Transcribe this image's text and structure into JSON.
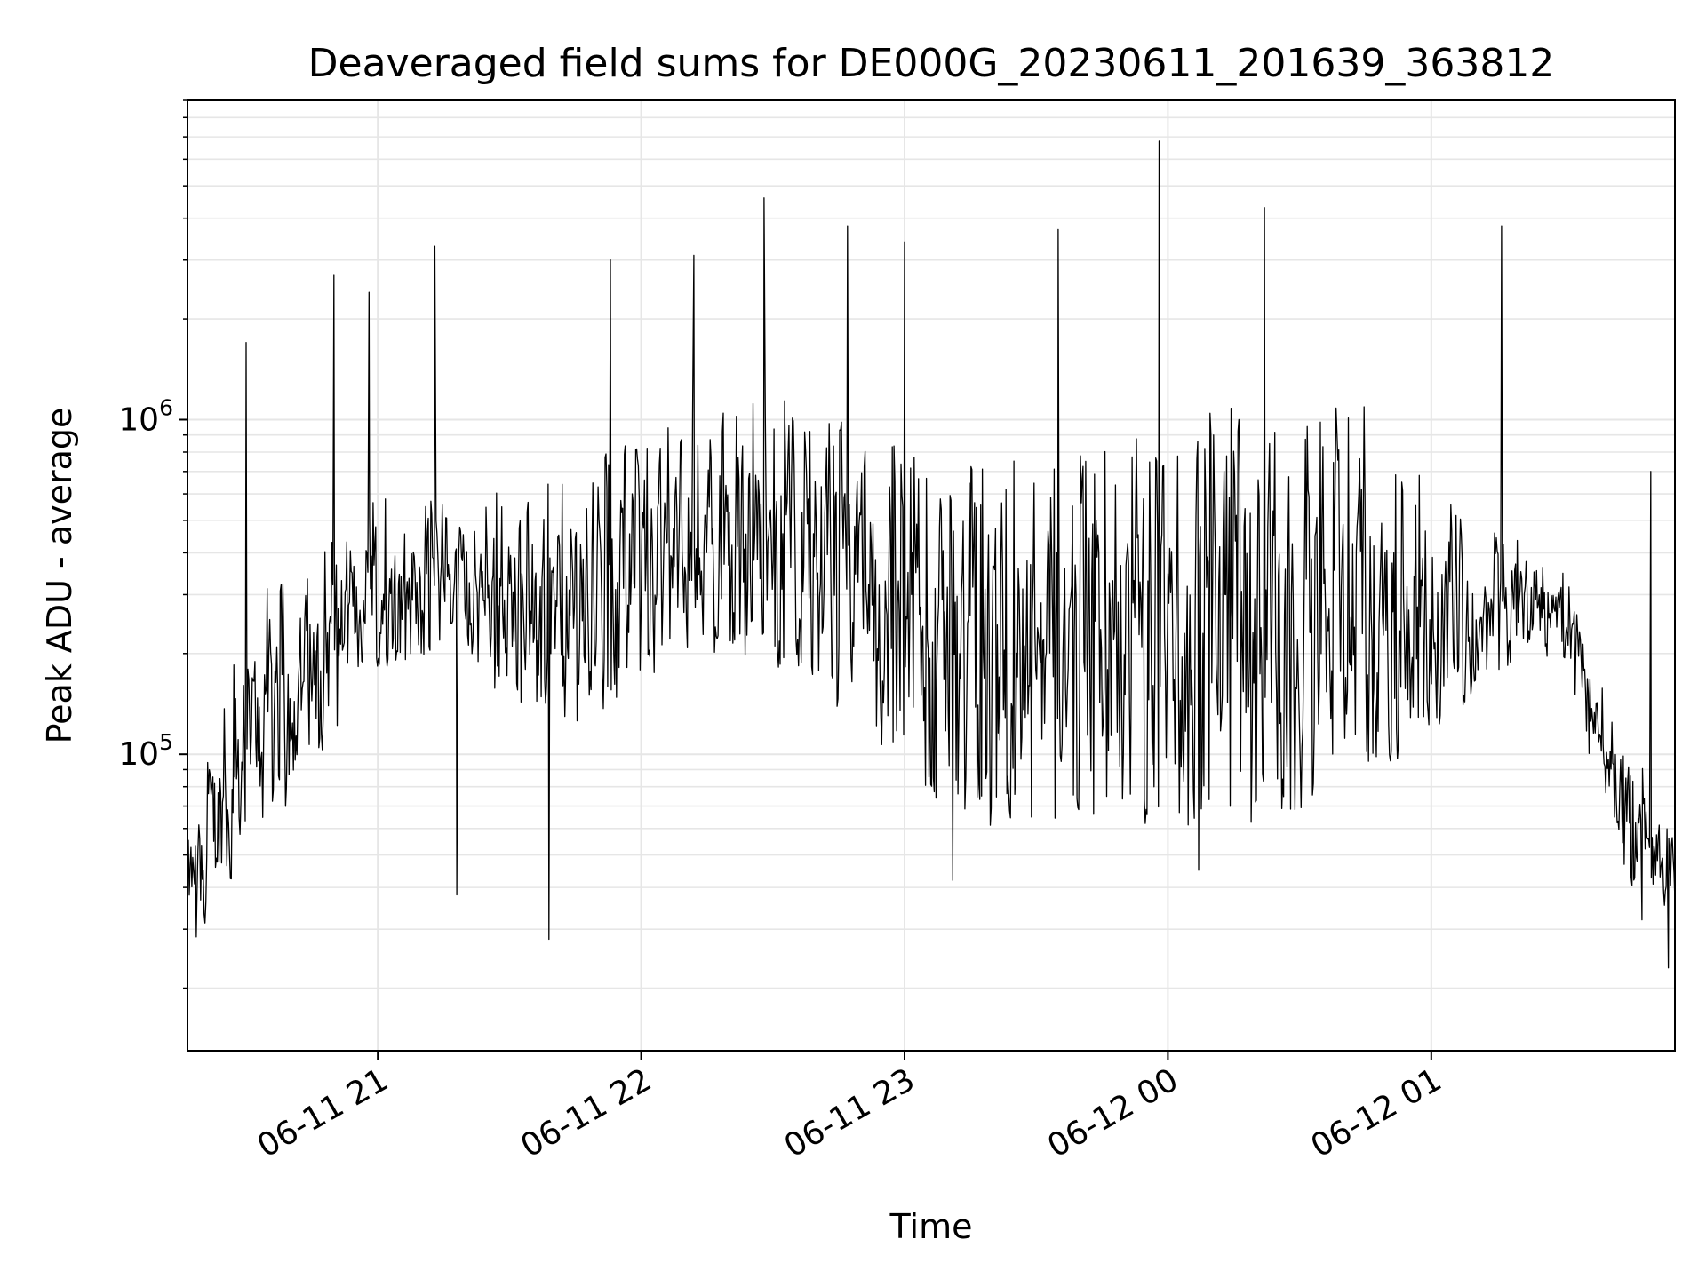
{
  "chart_data": {
    "type": "line",
    "title": "Deaveraged field sums for DE000G_20230611_201639_363812",
    "xlabel": "Time",
    "ylabel": "Peak ADU - average",
    "yscale": "log",
    "ylim": [
      13000,
      9000000
    ],
    "xlim": [
      "2023-06-11 20:16:39",
      "2023-06-12 01:55:30"
    ],
    "grid": true,
    "colors": {
      "line": "#000000",
      "grid": "#e6e6e6",
      "axes": "#000000"
    },
    "x_ticks": [
      {
        "label": "06-11 21",
        "value": "2023-06-11 21:00"
      },
      {
        "label": "06-11 22",
        "value": "2023-06-11 22:00"
      },
      {
        "label": "06-11 23",
        "value": "2023-06-11 23:00"
      },
      {
        "label": "06-12 00",
        "value": "2023-06-12 00:00"
      },
      {
        "label": "06-12 01",
        "value": "2023-06-12 01:00"
      }
    ],
    "y_ticks": [
      {
        "base": "10",
        "exp": "5",
        "value": 100000
      },
      {
        "base": "10",
        "exp": "6",
        "value": 1000000
      }
    ],
    "series": [
      {
        "envelope": {
          "time": [
            "2023-06-11 20:16:39",
            "2023-06-11 20:30",
            "2023-06-11 20:45",
            "2023-06-11 21:00",
            "2023-06-11 21:15",
            "2023-06-11 21:30",
            "2023-06-11 21:45",
            "2023-06-11 22:00",
            "2023-06-11 22:15",
            "2023-06-11 22:30",
            "2023-06-11 22:45",
            "2023-06-11 23:00",
            "2023-06-11 23:15",
            "2023-06-11 23:30",
            "2023-06-11 23:45",
            "2023-06-12 00:00",
            "2023-06-12 00:15",
            "2023-06-12 00:30",
            "2023-06-12 00:45",
            "2023-06-12 01:00",
            "2023-06-12 01:15",
            "2023-06-12 01:30",
            "2023-06-12 01:45",
            "2023-06-12 01:55:30"
          ],
          "typical_high": [
            60000,
            250000,
            400000,
            550000,
            560000,
            550000,
            650000,
            850000,
            1000000,
            1100000,
            900000,
            700000,
            650000,
            700000,
            800000,
            900000,
            950000,
            1000000,
            1000000,
            600000,
            450000,
            350000,
            100000,
            60000
          ],
          "typical_low": [
            25000,
            45000,
            90000,
            180000,
            200000,
            150000,
            120000,
            160000,
            200000,
            180000,
            130000,
            80000,
            60000,
            60000,
            60000,
            60000,
            60000,
            60000,
            70000,
            100000,
            180000,
            200000,
            40000,
            35000
          ]
        },
        "spikes": [
          {
            "time": "2023-06-11 20:30",
            "value": 1700000
          },
          {
            "time": "2023-06-11 20:50",
            "value": 2700000
          },
          {
            "time": "2023-06-11 20:58",
            "value": 2400000
          },
          {
            "time": "2023-06-11 21:13",
            "value": 3300000
          },
          {
            "time": "2023-06-11 21:53",
            "value": 3000000
          },
          {
            "time": "2023-06-11 22:12",
            "value": 3100000
          },
          {
            "time": "2023-06-11 22:28",
            "value": 4600000
          },
          {
            "time": "2023-06-11 22:47",
            "value": 3800000
          },
          {
            "time": "2023-06-11 23:00",
            "value": 3400000
          },
          {
            "time": "2023-06-11 23:35",
            "value": 3700000
          },
          {
            "time": "2023-06-11 23:58",
            "value": 6800000
          },
          {
            "time": "2023-06-12 00:22",
            "value": 4300000
          },
          {
            "time": "2023-06-12 01:16",
            "value": 3800000
          },
          {
            "time": "2023-06-12 01:50",
            "value": 700000
          },
          {
            "time": "2023-06-11 21:18",
            "value": 38000
          },
          {
            "time": "2023-06-11 21:39",
            "value": 28000
          },
          {
            "time": "2023-06-11 23:11",
            "value": 42000
          },
          {
            "time": "2023-06-12 00:07",
            "value": 45000
          },
          {
            "time": "2023-06-12 01:48",
            "value": 32000
          },
          {
            "time": "2023-06-12 01:54",
            "value": 23000
          }
        ]
      }
    ]
  }
}
